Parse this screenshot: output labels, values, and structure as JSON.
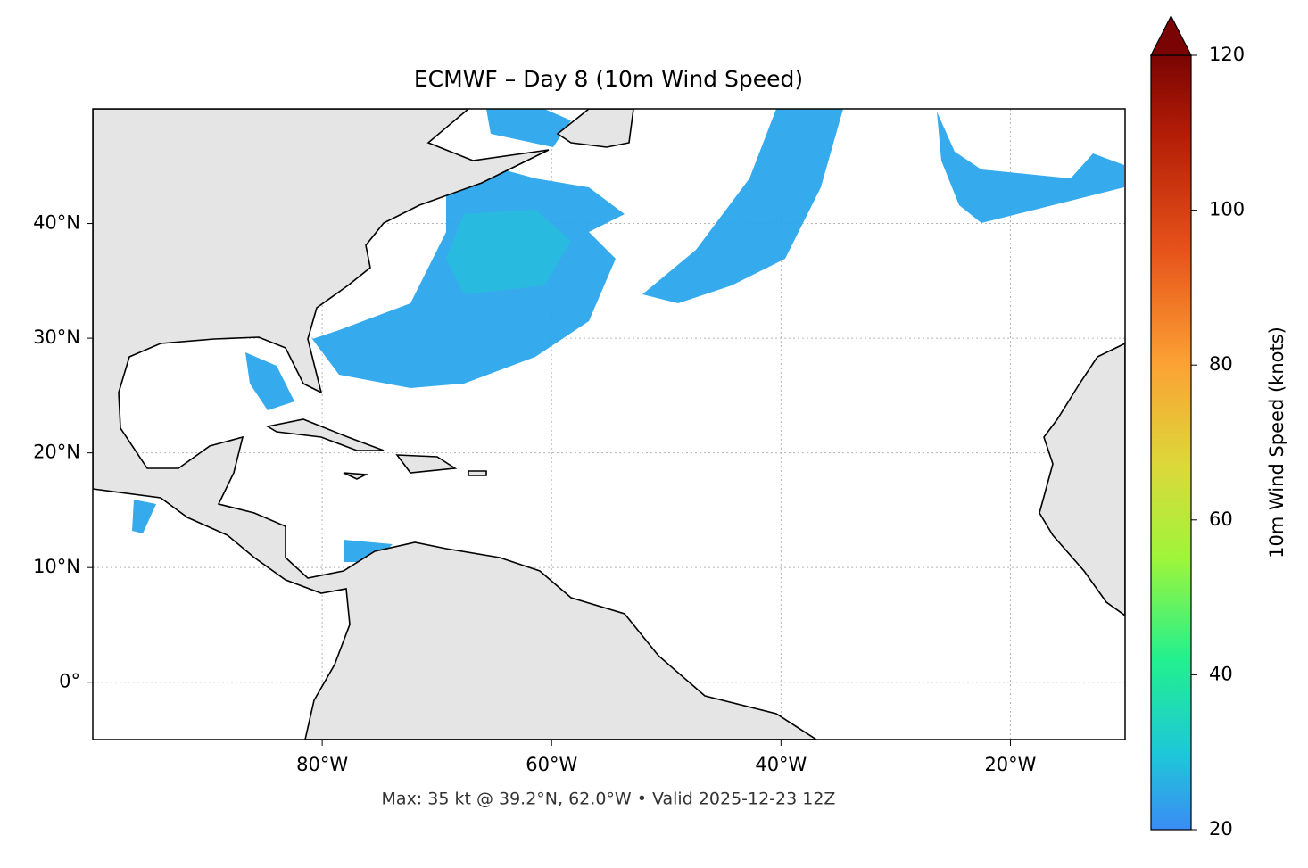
{
  "title": "ECMWF – Day 8 (10m Wind Speed)",
  "map": {
    "xlim": [
      -100,
      -10
    ],
    "ylim": [
      -5,
      50
    ],
    "xticks": [
      {
        "value": -80,
        "label": "80°W"
      },
      {
        "value": -60,
        "label": "60°W"
      },
      {
        "value": -40,
        "label": "40°W"
      },
      {
        "value": -20,
        "label": "20°W"
      }
    ],
    "yticks": [
      {
        "value": 0,
        "label": "0°"
      },
      {
        "value": 10,
        "label": "10°N"
      },
      {
        "value": 20,
        "label": "20°N"
      },
      {
        "value": 30,
        "label": "30°N"
      },
      {
        "value": 40,
        "label": "40°N"
      }
    ]
  },
  "colorbar": {
    "label": "10m Wind Speed (knots)",
    "lim": [
      20,
      120
    ],
    "ticks": [
      20,
      40,
      60,
      80,
      100,
      120
    ]
  },
  "footer": "Max: 35 kt @ 39.2°N, 62.0°W • Valid 2025-12-23 12Z"
}
